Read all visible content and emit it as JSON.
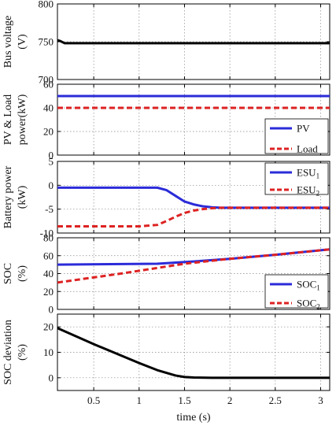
{
  "chart_data": [
    {
      "type": "line",
      "ylabel_lines": [
        "Bus voltage",
        "(V)"
      ],
      "xlim": [
        0.1,
        3.1
      ],
      "ylim": [
        700,
        800
      ],
      "yticks": [
        700,
        750,
        800
      ],
      "legend": null,
      "series": [
        {
          "color": "#000000",
          "style": "solid",
          "x": [
            0.1,
            0.13,
            0.18,
            0.3,
            3.1
          ],
          "y": [
            752,
            751,
            748,
            748,
            748
          ]
        }
      ]
    },
    {
      "type": "line",
      "ylabel_lines": [
        "PV & Load",
        "power(kW)"
      ],
      "xlim": [
        0.1,
        3.1
      ],
      "ylim": [
        0,
        60
      ],
      "yticks": [
        0,
        20,
        40,
        60
      ],
      "legend": {
        "placement": "bottom-right"
      },
      "series": [
        {
          "name": "PV",
          "color": "#2b2bd9",
          "style": "solid",
          "x": [
            0.1,
            3.1
          ],
          "y": [
            50,
            50
          ]
        },
        {
          "name": "Load",
          "color": "#dd2222",
          "style": "dashed",
          "x": [
            0.1,
            3.1
          ],
          "y": [
            40,
            40
          ]
        }
      ]
    },
    {
      "type": "line",
      "ylabel_lines": [
        "Battery power",
        "(kW)"
      ],
      "xlim": [
        0.1,
        3.1
      ],
      "ylim": [
        -10,
        5
      ],
      "yticks": [
        -10,
        -5,
        0,
        5
      ],
      "legend": {
        "placement": "top-right"
      },
      "series": [
        {
          "name": "ESU",
          "sub": "1",
          "color": "#2b2bd9",
          "style": "solid",
          "x": [
            0.1,
            1.2,
            1.3,
            1.4,
            1.5,
            1.6,
            1.7,
            1.8,
            1.9,
            2.0,
            3.1
          ],
          "y": [
            -0.5,
            -0.5,
            -1.0,
            -2.2,
            -3.4,
            -4.0,
            -4.4,
            -4.6,
            -4.7,
            -4.7,
            -4.7
          ]
        },
        {
          "name": "ESU",
          "sub": "2",
          "color": "#dd2222",
          "style": "dashed",
          "x": [
            0.1,
            1.0,
            1.2,
            1.3,
            1.4,
            1.5,
            1.6,
            1.7,
            1.8,
            1.9,
            2.0,
            3.1
          ],
          "y": [
            -8.6,
            -8.6,
            -8.3,
            -7.5,
            -6.6,
            -5.8,
            -5.3,
            -5.0,
            -4.8,
            -4.7,
            -4.7,
            -4.7
          ]
        }
      ]
    },
    {
      "type": "line",
      "ylabel_lines": [
        "SOC",
        "(%)"
      ],
      "xlim": [
        0.1,
        3.1
      ],
      "ylim": [
        0,
        80
      ],
      "yticks": [
        0,
        20,
        40,
        60,
        80
      ],
      "legend": {
        "placement": "bottom-right"
      },
      "series": [
        {
          "name": "SOC",
          "sub": "1",
          "color": "#2b2bd9",
          "style": "solid",
          "x": [
            0.1,
            1.2,
            1.6,
            2.0,
            2.5,
            3.1
          ],
          "y": [
            50,
            51,
            53.5,
            56.5,
            61,
            67
          ]
        },
        {
          "name": "SOC",
          "sub": "2",
          "color": "#dd2222",
          "style": "dashed",
          "x": [
            0.1,
            0.8,
            1.5,
            2.0,
            2.5,
            3.1
          ],
          "y": [
            30,
            40,
            51,
            56.5,
            61,
            67
          ]
        }
      ]
    },
    {
      "type": "line",
      "ylabel_lines": [
        "SOC deviation",
        "(%)"
      ],
      "xlim": [
        0.1,
        3.1
      ],
      "ylim": [
        -5,
        25
      ],
      "yticks": [
        0,
        10,
        20
      ],
      "legend": null,
      "xlabel": "time (s)",
      "xticks": [
        0.5,
        1,
        1.5,
        2,
        2.5,
        3
      ],
      "xtick_labels": [
        "0.5",
        "1",
        "1.5",
        "2",
        "2.5",
        "3"
      ],
      "series": [
        {
          "color": "#000000",
          "style": "solid",
          "x": [
            0.1,
            0.5,
            1.0,
            1.2,
            1.4,
            1.5,
            1.6,
            1.8,
            3.1
          ],
          "y": [
            19.5,
            13.2,
            5.8,
            3.0,
            0.9,
            0.3,
            0.1,
            0.0,
            0.0
          ]
        }
      ]
    }
  ]
}
